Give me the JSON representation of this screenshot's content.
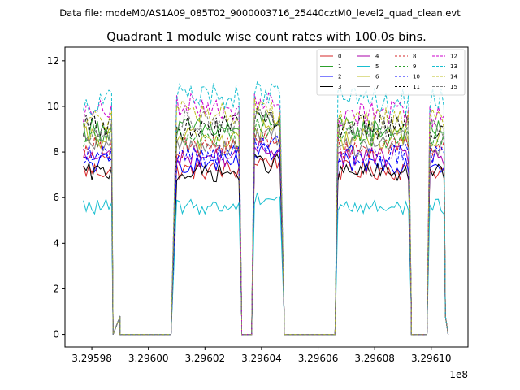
{
  "figure": {
    "suptitle": "Data file: modeM0/AS1A09_085T02_9000003716_25440cztM0_level2_quad_clean.evt",
    "title": "Quadrant 1 module wise count rates with 100.0s bins.",
    "x_offset_label": "1e8"
  },
  "chart_data": {
    "type": "line",
    "title": "Quadrant 1 module wise count rates with 100.0s bins.",
    "xlabel": "",
    "ylabel": "",
    "x_offset": 100000000,
    "x_ticks": [
      329598,
      329600,
      329602,
      329604,
      329606,
      329608,
      329610
    ],
    "x_tick_labels": [
      "3.29598",
      "3.29600",
      "3.29602",
      "3.29604",
      "3.29606",
      "3.29608",
      "3.29610"
    ],
    "y_ticks": [
      0,
      2,
      4,
      6,
      8,
      10,
      12
    ],
    "y_tick_labels": [
      "0",
      "2",
      "4",
      "6",
      "8",
      "10",
      "12"
    ],
    "xlim": [
      329597.05,
      329611.3
    ],
    "ylim": [
      -0.55,
      12.6
    ],
    "legend": {
      "placement": "top-right",
      "columns": 4
    },
    "segments": [
      {
        "x_start": 329597.7,
        "x_end": 329598.75,
        "level_x": 329598.8,
        "zero_x": 329599.0
      },
      {
        "x_start": 329601.0,
        "x_end": 329603.25,
        "level_x": 329600.8,
        "zero_x": 329603.3
      },
      {
        "x_start": 329603.75,
        "x_end": 329604.65,
        "level_x": 329603.7,
        "zero_x": 329604.8
      },
      {
        "x_start": 329606.7,
        "x_end": 329609.25,
        "level_x": 329606.6,
        "zero_x": 329609.3
      },
      {
        "x_start": 329609.95,
        "x_end": 329610.45,
        "level_x": 329609.9,
        "zero_x": 329610.5
      }
    ],
    "gaps_zero": [
      [
        329599.0,
        329600.8
      ],
      [
        329603.3,
        329603.55
      ],
      [
        329604.8,
        329606.6
      ],
      [
        329609.3,
        329609.8
      ]
    ],
    "series": [
      {
        "name": "0",
        "color": "#d62728",
        "dash": "solid",
        "level": 7.2
      },
      {
        "name": "1",
        "color": "#2ca02c",
        "dash": "solid",
        "level": 9.0
      },
      {
        "name": "2",
        "color": "#0000ff",
        "dash": "solid",
        "level": 7.5
      },
      {
        "name": "3",
        "color": "#000000",
        "dash": "solid",
        "level": 7.1
      },
      {
        "name": "4",
        "color": "#aa00aa",
        "dash": "solid",
        "level": 7.8
      },
      {
        "name": "5",
        "color": "#17becf",
        "dash": "solid",
        "level": 5.6
      },
      {
        "name": "6",
        "color": "#bcbd22",
        "dash": "solid",
        "level": 8.6
      },
      {
        "name": "7",
        "color": "#7f7f7f",
        "dash": "solid",
        "level": 8.3
      },
      {
        "name": "8",
        "color": "#d62728",
        "dash": "dashed",
        "level": 8.2
      },
      {
        "name": "9",
        "color": "#2ca02c",
        "dash": "dashed",
        "level": 8.7
      },
      {
        "name": "10",
        "color": "#0000ff",
        "dash": "dashed",
        "level": 7.9
      },
      {
        "name": "11",
        "color": "#000000",
        "dash": "dashed",
        "level": 9.1
      },
      {
        "name": "12",
        "color": "#cc00cc",
        "dash": "dashed",
        "level": 9.7
      },
      {
        "name": "13",
        "color": "#17becf",
        "dash": "dashed",
        "level": 10.2
      },
      {
        "name": "14",
        "color": "#bcbd22",
        "dash": "dashed",
        "level": 9.4
      },
      {
        "name": "15",
        "color": "#7f7f7f",
        "dash": "dashed",
        "level": 9.0
      }
    ]
  }
}
